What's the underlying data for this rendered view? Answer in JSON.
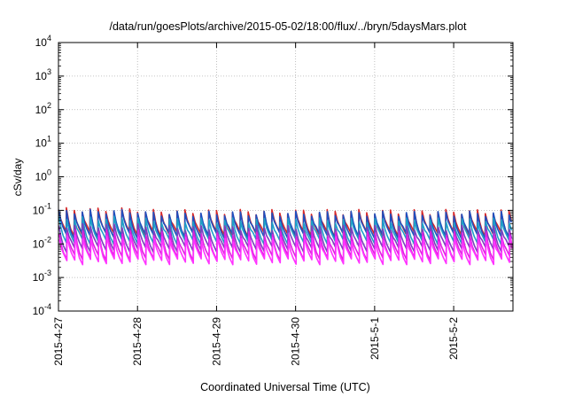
{
  "chart_data": {
    "type": "line",
    "title": "/data/run/goesPlots/archive/2015-05-02/18:00/flux/../bryn/5daysMars.plot",
    "xlabel": "Coordinated Universal Time (UTC)",
    "ylabel": "cSv/day",
    "yscale": "log",
    "ylim": [
      0.0001,
      10000
    ],
    "y_ticks": [
      {
        "value": 0.0001,
        "base": "10",
        "exp": "-4"
      },
      {
        "value": 0.001,
        "base": "10",
        "exp": "-3"
      },
      {
        "value": 0.01,
        "base": "10",
        "exp": "-2"
      },
      {
        "value": 0.1,
        "base": "10",
        "exp": "-1"
      },
      {
        "value": 1,
        "base": "10",
        "exp": "0"
      },
      {
        "value": 10,
        "base": "10",
        "exp": "1"
      },
      {
        "value": 100,
        "base": "10",
        "exp": "2"
      },
      {
        "value": 1000,
        "base": "10",
        "exp": "3"
      },
      {
        "value": 10000,
        "base": "10",
        "exp": "4"
      }
    ],
    "x_ticks": [
      "2015-4-27",
      "2015-4-28",
      "2015-4-29",
      "2015-4-30",
      "2015-5-1",
      "2015-5-2"
    ],
    "xlim": [
      "2015-04-27T00:00",
      "2015-05-02T18:00"
    ],
    "grid": true,
    "legend": "none",
    "pattern": {
      "description": "sawtooth series, about 10 spikes per day",
      "spikes_per_day": 10
    },
    "series": [
      {
        "color": "#d62728",
        "peak": 0.09,
        "trough": 0.02
      },
      {
        "color": "#1f4fbf",
        "peak": 0.08,
        "trough": 0.018
      },
      {
        "color": "#1fa0c8",
        "peak": 0.05,
        "trough": 0.012
      },
      {
        "color": "#7d3fbf",
        "peak": 0.03,
        "trough": 0.007
      },
      {
        "color": "#e020e0",
        "peak": 0.02,
        "trough": 0.004
      },
      {
        "color": "#ff33ff",
        "peak": 0.014,
        "trough": 0.003
      }
    ]
  }
}
